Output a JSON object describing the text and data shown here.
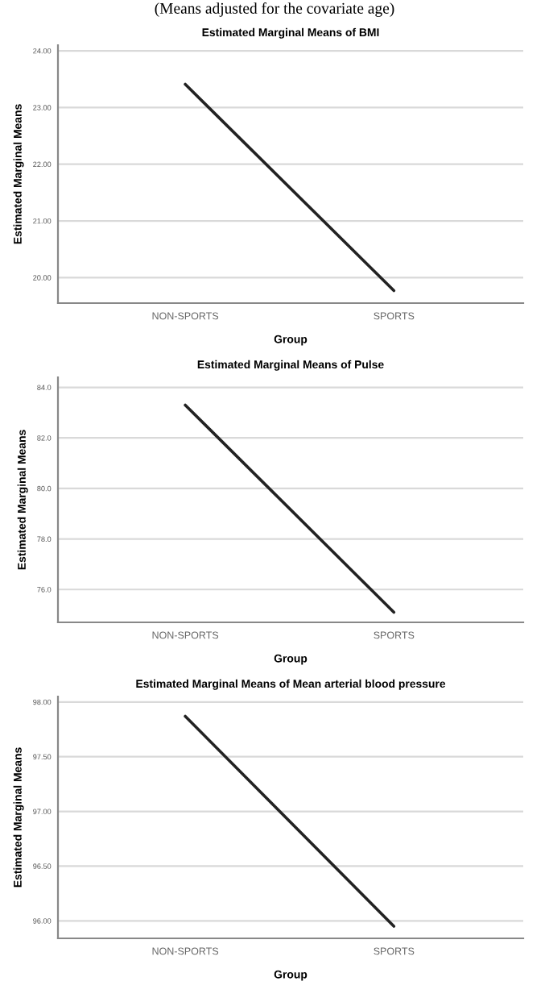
{
  "chart_data": [
    {
      "type": "line",
      "subtitle": "(Means adjusted for the covariate age)",
      "title": "Estimated Marginal Means of BMI",
      "xlabel": "Group",
      "ylabel": "Estimated Marginal Means",
      "categories": [
        "NON-SPORTS",
        "SPORTS"
      ],
      "series": [
        {
          "color": "#222222",
          "values": [
            23.41,
            19.77
          ]
        }
      ],
      "ylim": [
        19.55,
        24.1
      ],
      "yticks": [
        {
          "value": 20,
          "label": "20.00"
        },
        {
          "value": 21,
          "label": "21.00"
        },
        {
          "value": 22,
          "label": "22.00"
        },
        {
          "value": 23,
          "label": "23.00"
        },
        {
          "value": 24,
          "label": "24.00"
        }
      ],
      "grid": "y"
    },
    {
      "type": "line",
      "title": "Estimated Marginal Means of Pulse",
      "xlabel": "Group",
      "ylabel": "Estimated Marginal Means",
      "categories": [
        "NON-SPORTS",
        "SPORTS"
      ],
      "series": [
        {
          "color": "#222222",
          "values": [
            83.3,
            75.1
          ]
        }
      ],
      "ylim": [
        74.7,
        84.4
      ],
      "yticks": [
        {
          "value": 76,
          "label": "76.0"
        },
        {
          "value": 78,
          "label": "78.0"
        },
        {
          "value": 80,
          "label": "80.0"
        },
        {
          "value": 82,
          "label": "82.0"
        },
        {
          "value": 84,
          "label": "84.0"
        }
      ],
      "grid": "y"
    },
    {
      "type": "line",
      "title": "Estimated Marginal Means of Mean arterial blood pressure",
      "xlabel": "Group",
      "ylabel": "Estimated Marginal Means",
      "categories": [
        "NON-SPORTS",
        "SPORTS"
      ],
      "series": [
        {
          "color": "#222222",
          "values": [
            97.87,
            95.95
          ]
        }
      ],
      "ylim": [
        95.84,
        98.05
      ],
      "yticks": [
        {
          "value": 96,
          "label": "96.00"
        },
        {
          "value": 96.5,
          "label": "96.50"
        },
        {
          "value": 97,
          "label": "97.00"
        },
        {
          "value": 97.5,
          "label": "97.50"
        },
        {
          "value": 98,
          "label": "98.00"
        }
      ],
      "grid": "y"
    }
  ]
}
